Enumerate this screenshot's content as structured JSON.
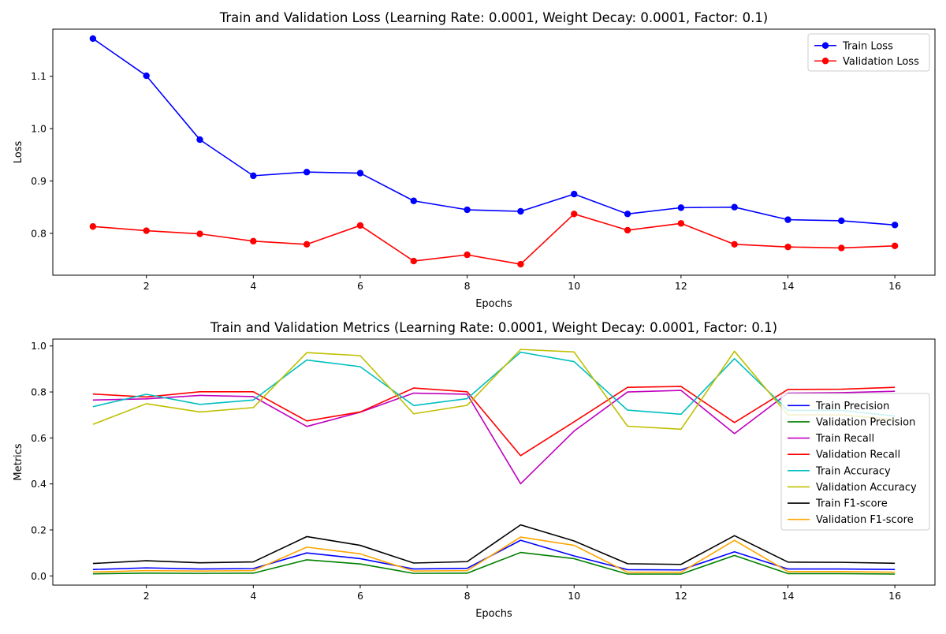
{
  "chart_data": [
    {
      "type": "line",
      "title": "Train and Validation Loss (Learning Rate: 0.0001, Weight Decay: 0.0001, Factor: 0.1)",
      "xlabel": "Epochs",
      "ylabel": "Loss",
      "x": [
        1,
        2,
        3,
        4,
        5,
        6,
        7,
        8,
        9,
        10,
        11,
        12,
        13,
        14,
        15,
        16
      ],
      "xlim": [
        0.25,
        16.75
      ],
      "ylim": [
        0.72,
        1.19
      ],
      "xticks": [
        2,
        4,
        6,
        8,
        10,
        12,
        14,
        16
      ],
      "yticks": [
        0.8,
        0.9,
        1.0,
        1.1
      ],
      "ytick_labels": [
        "0.8",
        "0.9",
        "1.0",
        "1.1"
      ],
      "markers": true,
      "legend": "top-right",
      "grid": false,
      "series": [
        {
          "name": "Train Loss",
          "color": "#0000ff",
          "values": [
            1.172,
            1.101,
            0.979,
            0.91,
            0.917,
            0.915,
            0.862,
            0.845,
            0.842,
            0.875,
            0.837,
            0.849,
            0.85,
            0.826,
            0.824,
            0.816
          ]
        },
        {
          "name": "Validation Loss",
          "color": "#ff0000",
          "values": [
            0.813,
            0.805,
            0.799,
            0.785,
            0.779,
            0.815,
            0.747,
            0.759,
            0.741,
            0.837,
            0.806,
            0.819,
            0.779,
            0.774,
            0.772,
            0.776
          ]
        }
      ]
    },
    {
      "type": "line",
      "title": "Train and Validation Metrics (Learning Rate: 0.0001, Weight Decay: 0.0001, Factor: 0.1)",
      "xlabel": "Epochs",
      "ylabel": "Metrics",
      "x": [
        1,
        2,
        3,
        4,
        5,
        6,
        7,
        8,
        9,
        10,
        11,
        12,
        13,
        14,
        15,
        16
      ],
      "xlim": [
        0.25,
        16.75
      ],
      "ylim": [
        -0.04,
        1.03
      ],
      "xticks": [
        2,
        4,
        6,
        8,
        10,
        12,
        14,
        16
      ],
      "yticks": [
        0.0,
        0.2,
        0.4,
        0.6,
        0.8,
        1.0
      ],
      "ytick_labels": [
        "0.0",
        "0.2",
        "0.4",
        "0.6",
        "0.8",
        "1.0"
      ],
      "markers": false,
      "legend": "center-right",
      "grid": false,
      "series": [
        {
          "name": "Train Precision",
          "color": "#0000ff",
          "values": [
            0.028,
            0.035,
            0.03,
            0.032,
            0.1,
            0.075,
            0.03,
            0.033,
            0.155,
            0.087,
            0.027,
            0.026,
            0.105,
            0.03,
            0.03,
            0.028
          ]
        },
        {
          "name": "Validation Precision",
          "color": "#008000",
          "values": [
            0.009,
            0.012,
            0.011,
            0.012,
            0.07,
            0.052,
            0.011,
            0.012,
            0.102,
            0.075,
            0.008,
            0.008,
            0.089,
            0.01,
            0.01,
            0.008
          ]
        },
        {
          "name": "Train Recall",
          "color": "#bf00bf",
          "values": [
            0.765,
            0.77,
            0.785,
            0.78,
            0.65,
            0.712,
            0.795,
            0.79,
            0.401,
            0.63,
            0.8,
            0.807,
            0.619,
            0.795,
            0.797,
            0.803
          ]
        },
        {
          "name": "Validation Recall",
          "color": "#ff0000",
          "values": [
            0.791,
            0.778,
            0.801,
            0.801,
            0.674,
            0.713,
            0.817,
            0.801,
            0.523,
            0.67,
            0.82,
            0.824,
            0.667,
            0.811,
            0.812,
            0.82
          ]
        },
        {
          "name": "Train Accuracy",
          "color": "#00bfbf",
          "values": [
            0.736,
            0.79,
            0.746,
            0.765,
            0.939,
            0.91,
            0.741,
            0.771,
            0.973,
            0.932,
            0.721,
            0.703,
            0.945,
            0.72,
            0.72,
            0.695
          ]
        },
        {
          "name": "Validation Accuracy",
          "color": "#bfbf00",
          "values": [
            0.659,
            0.749,
            0.713,
            0.732,
            0.971,
            0.958,
            0.705,
            0.742,
            0.985,
            0.974,
            0.651,
            0.638,
            0.977,
            0.7,
            0.7,
            0.68
          ]
        },
        {
          "name": "Train F1-score",
          "color": "#000000",
          "values": [
            0.054,
            0.066,
            0.057,
            0.061,
            0.171,
            0.133,
            0.056,
            0.062,
            0.222,
            0.152,
            0.053,
            0.05,
            0.175,
            0.06,
            0.059,
            0.055
          ]
        },
        {
          "name": "Validation F1-score",
          "color": "#ffa500",
          "values": [
            0.017,
            0.023,
            0.021,
            0.023,
            0.125,
            0.096,
            0.021,
            0.023,
            0.169,
            0.133,
            0.016,
            0.016,
            0.155,
            0.019,
            0.019,
            0.016
          ]
        }
      ]
    }
  ]
}
